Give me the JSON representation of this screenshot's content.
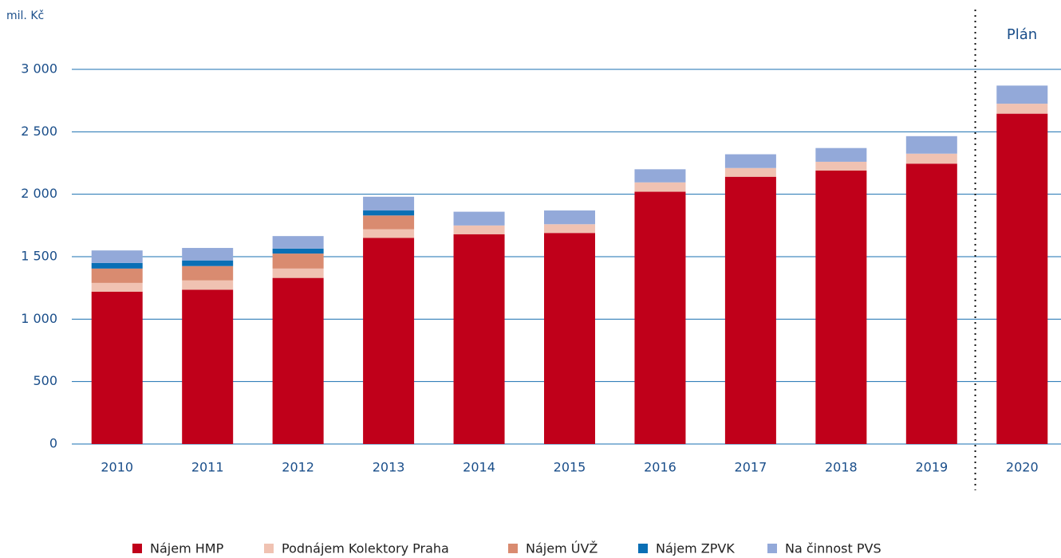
{
  "chart_data": {
    "type": "stacked_bar",
    "y_label": "mil. Kč",
    "annotation": "Plán",
    "categories": [
      "2010",
      "2011",
      "2012",
      "2013",
      "2014",
      "2015",
      "2016",
      "2017",
      "2018",
      "2019",
      "2020"
    ],
    "series": [
      {
        "name": "Nájem HMP",
        "color": "#c0001a",
        "values": [
          1220,
          1235,
          1330,
          1650,
          1680,
          1690,
          2020,
          2140,
          2190,
          2245,
          2645
        ]
      },
      {
        "name": "Podnájem Kolektory Praha",
        "color": "#f0c2b2",
        "values": [
          70,
          75,
          75,
          70,
          70,
          70,
          75,
          70,
          70,
          80,
          80
        ]
      },
      {
        "name": "Nájem ÚVŽ",
        "color": "#d98b70",
        "values": [
          115,
          115,
          120,
          110,
          null,
          null,
          null,
          null,
          null,
          null,
          null
        ]
      },
      {
        "name": "Nájem ZPVK",
        "color": "#0a6fb5",
        "values": [
          45,
          45,
          40,
          40,
          null,
          null,
          null,
          null,
          null,
          null,
          null
        ]
      },
      {
        "name": "Na činnost PVS",
        "color": "#93a9d9",
        "values": [
          100,
          100,
          100,
          110,
          110,
          110,
          105,
          110,
          110,
          140,
          145
        ]
      }
    ],
    "ylim": [
      0,
      3000
    ],
    "yticks": [
      0,
      500,
      {
        "value": 1000,
        "label": "1 000"
      },
      {
        "value": 1500,
        "label": "1 500"
      },
      {
        "value": 2000,
        "label": "2 000"
      },
      {
        "value": 2500,
        "label": "2 500"
      },
      {
        "value": 3000,
        "label": "3 000"
      }
    ],
    "grid": true
  }
}
